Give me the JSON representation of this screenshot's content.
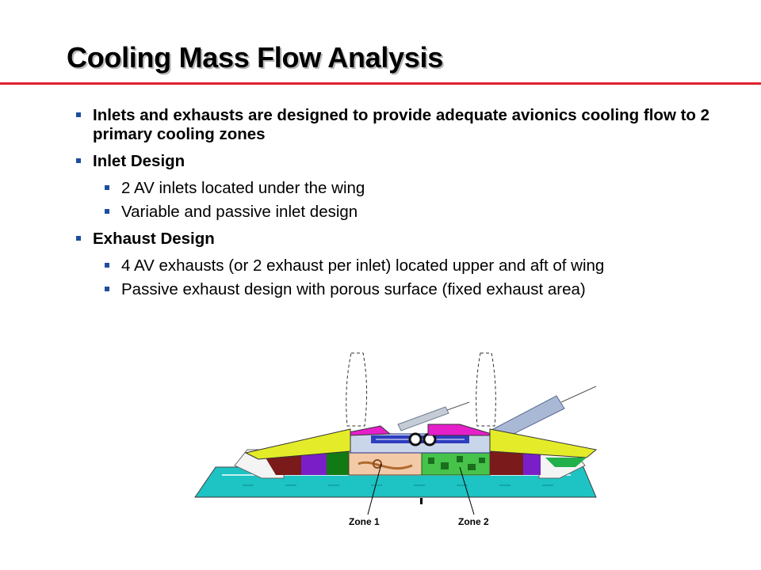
{
  "slide": {
    "title": "Cooling Mass Flow Analysis",
    "accent_color": "#e0202e",
    "bullet_color": "#1e4e9e",
    "bullets": [
      {
        "text": "Inlets and exhausts are designed to provide adequate avionics cooling flow to 2 primary cooling zones"
      },
      {
        "text": "Inlet Design",
        "sub": [
          "2 AV inlets located under the wing",
          "Variable and passive inlet design"
        ]
      },
      {
        "text": "Exhaust Design",
        "sub": [
          "4 AV exhausts (or 2 exhaust per inlet) located upper and aft of wing",
          "Passive exhaust design with porous surface (fixed exhaust area)"
        ]
      }
    ]
  },
  "figure": {
    "zone1_label": "Zone 1",
    "zone2_label": "Zone 2"
  }
}
